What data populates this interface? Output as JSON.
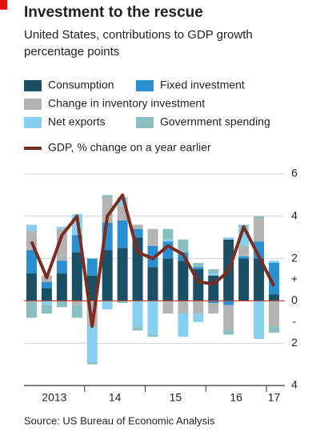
{
  "chart_data": {
    "type": "bar",
    "stacked": true,
    "title": "Investment to the rescue",
    "subtitle": [
      "United States, contributions to GDP growth",
      "percentage points"
    ],
    "categories": [
      "2013",
      null,
      null,
      null,
      "14",
      null,
      null,
      null,
      "15",
      null,
      null,
      null,
      "16",
      null,
      null,
      null,
      "17"
    ],
    "series": [
      {
        "name": "Consumption",
        "color": "#1b4f66",
        "values": [
          1.3,
          0.6,
          1.3,
          2.3,
          1.2,
          2.4,
          2.5,
          3.0,
          1.6,
          2.0,
          1.9,
          1.5,
          1.2,
          2.9,
          2.0,
          2.0,
          0.3
        ]
      },
      {
        "name": "Fixed investment",
        "color": "#2a8fd0",
        "values": [
          1.1,
          0.3,
          0.6,
          0.8,
          0.8,
          1.3,
          1.3,
          0.4,
          1.0,
          0.8,
          0.4,
          0.1,
          -0.1,
          -0.2,
          0.1,
          0.8,
          1.5
        ]
      },
      {
        "name": "Change in inventory investment",
        "color": "#b3b3b3",
        "values": [
          0.9,
          0.3,
          1.5,
          -0.2,
          -1.2,
          1.2,
          0.7,
          0.2,
          0.8,
          -0.6,
          -0.6,
          -0.6,
          -0.5,
          -1.2,
          0.5,
          1.1,
          -1.2
        ]
      },
      {
        "name": "Net exports",
        "color": "#86cff0",
        "values": [
          0.3,
          -0.2,
          0.1,
          1.0,
          -1.7,
          -0.4,
          0.4,
          -1.2,
          -1.6,
          0.1,
          -1.1,
          -0.4,
          0.1,
          0.1,
          0.9,
          -1.8,
          0.1
        ]
      },
      {
        "name": "Government spending",
        "color": "#89bfc1",
        "values": [
          -0.8,
          -0.4,
          -0.3,
          -0.6,
          -0.1,
          0.1,
          -0.1,
          -0.2,
          -0.1,
          0.5,
          0.6,
          0.2,
          0.2,
          -0.2,
          0.1,
          0.1,
          -0.3
        ]
      }
    ],
    "line_series": {
      "name": "GDP, % change on a year earlier",
      "color": "#7b2d1f",
      "values": [
        2.8,
        1.1,
        3.1,
        4.0,
        -1.2,
        4.0,
        5.0,
        2.3,
        2.0,
        2.6,
        2.2,
        0.9,
        0.8,
        1.4,
        3.5,
        2.1,
        0.7
      ]
    },
    "ylim": [
      -4,
      6
    ],
    "yticks": [
      {
        "value": -4,
        "label": "4"
      },
      {
        "value": -2,
        "label": "2"
      },
      0,
      2,
      4,
      6
    ],
    "positive_sign": "+",
    "negative_sign": "-",
    "grid": true,
    "source": "Source: US Bureau of Economic Analysis"
  }
}
